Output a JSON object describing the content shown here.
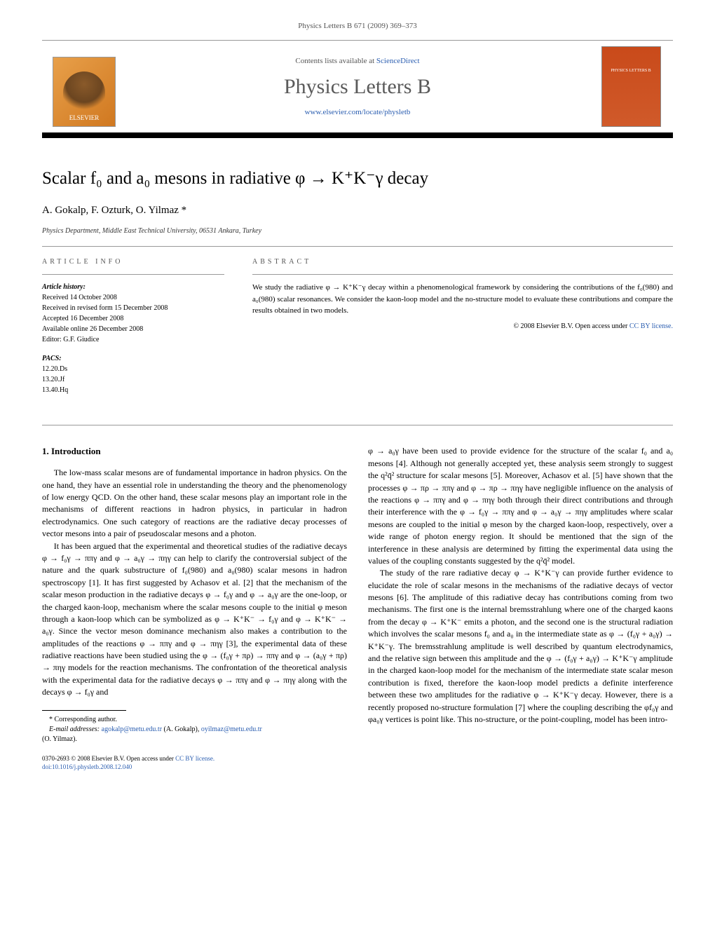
{
  "header": {
    "citation": "Physics Letters B 671 (2009) 369–373"
  },
  "banner": {
    "publisher_name": "ELSEVIER",
    "contents_prefix": "Contents lists available at ",
    "contents_link": "ScienceDirect",
    "journal_name": "Physics Letters B",
    "journal_url": "www.elsevier.com/locate/physletb",
    "cover_label": "PHYSICS LETTERS B"
  },
  "article": {
    "title": "Scalar f₀ and a₀ mesons in radiative φ → K⁺K⁻γ decay",
    "authors": "A. Gokalp, F. Ozturk, O. Yilmaz *",
    "affiliation": "Physics Department, Middle East Technical University, 06531 Ankara, Turkey"
  },
  "meta": {
    "info_heading": "ARTICLE INFO",
    "history_label": "Article history:",
    "received": "Received 14 October 2008",
    "revised": "Received in revised form 15 December 2008",
    "accepted": "Accepted 16 December 2008",
    "online": "Available online 26 December 2008",
    "editor": "Editor: G.F. Giudice",
    "pacs_label": "PACS:",
    "pacs1": "12.20.Ds",
    "pacs2": "13.20.Jf",
    "pacs3": "13.40.Hq"
  },
  "abstract": {
    "heading": "ABSTRACT",
    "text": "We study the radiative φ → K⁺K⁻γ decay within a phenomenological framework by considering the contributions of the f₀(980) and a₀(980) scalar resonances. We consider the kaon-loop model and the no-structure model to evaluate these contributions and compare the results obtained in two models.",
    "copyright": "© 2008 Elsevier B.V. ",
    "open_access": "Open access under ",
    "license_link": "CC BY license."
  },
  "body": {
    "section1_heading": "1. Introduction",
    "p1": "The low-mass scalar mesons are of fundamental importance in hadron physics. On the one hand, they have an essential role in understanding the theory and the phenomenology of low energy QCD. On the other hand, these scalar mesons play an important role in the mechanisms of different reactions in hadron physics, in particular in hadron electrodynamics. One such category of reactions are the radiative decay processes of vector mesons into a pair of pseudoscalar mesons and a photon.",
    "p2": "It has been argued that the experimental and theoretical studies of the radiative decays φ → f₀γ → ππγ and φ → a₀γ → πηγ can help to clarify the controversial subject of the nature and the quark substructure of f₀(980) and a₀(980) scalar mesons in hadron spectroscopy [1]. It has first suggested by Achasov et al. [2] that the mechanism of the scalar meson production in the radiative decays φ → f₀γ and φ → a₀γ are the one-loop, or the charged kaon-loop, mechanism where the scalar mesons couple to the initial φ meson through a kaon-loop which can be symbolized as φ → K⁺K⁻ → f₀γ and φ → K⁺K⁻ → a₀γ. Since the vector meson dominance mechanism also makes a contribution to the amplitudes of the reactions φ → ππγ and φ → πηγ [3], the experimental data of these radiative reactions have been studied using the φ → (f₀γ + πρ) → ππγ and φ → (a₀γ + πρ) → πηγ models for the reaction mechanisms. The confrontation of the theoretical analysis with the experimental data for the radiative decays φ → ππγ and φ → πηγ along with the decays φ → f₀γ and",
    "p3": "φ → a₀γ have been used to provide evidence for the structure of the scalar f₀ and a₀ mesons [4]. Although not generally accepted yet, these analysis seem strongly to suggest the q²q̄² structure for scalar mesons [5]. Moreover, Achasov et al. [5] have shown that the processes φ → πρ → ππγ and φ → πρ → πηγ have negligible influence on the analysis of the reactions φ → ππγ and φ → πηγ both through their direct contributions and through their interference with the φ → f₀γ → ππγ and φ → a₀γ → πηγ amplitudes where scalar mesons are coupled to the initial φ meson by the charged kaon-loop, respectively, over a wide range of photon energy region. It should be mentioned that the sign of the interference in these analysis are determined by fitting the experimental data using the values of the coupling constants suggested by the q²q̄² model.",
    "p4": "The study of the rare radiative decay φ → K⁺K⁻γ can provide further evidence to elucidate the role of scalar mesons in the mechanisms of the radiative decays of vector mesons [6]. The amplitude of this radiative decay has contributions coming from two mechanisms. The first one is the internal bremsstrahlung where one of the charged kaons from the decay φ → K⁺K⁻ emits a photon, and the second one is the structural radiation which involves the scalar mesons f₀ and a₀ in the intermediate state as φ → (f₀γ + a₀γ) → K⁺K⁻γ. The bremsstrahlung amplitude is well described by quantum electrodynamics, and the relative sign between this amplitude and the φ → (f₀γ + a₀γ) → K⁺K⁻γ amplitude in the charged kaon-loop model for the mechanism of the intermediate state scalar meson contribution is fixed, therefore the kaon-loop model predicts a definite interference between these two amplitudes for the radiative φ → K⁺K⁻γ decay. However, there is a recently proposed no-structure formulation [7] where the coupling describing the φf₀γ and φa₀γ vertices is point like. This no-structure, or the point-coupling, model has been intro-"
  },
  "footnote": {
    "corr": "* Corresponding author.",
    "email_label": "E-mail addresses: ",
    "email1": "agokalp@metu.edu.tr",
    "email1_name": " (A. Gokalp), ",
    "email2": "oyilmaz@metu.edu.tr",
    "email2_name": "(O. Yilmaz)."
  },
  "footer": {
    "issn": "0370-2693 © 2008 Elsevier B.V. ",
    "open_access": "Open access under ",
    "license": "CC BY license.",
    "doi": "doi:10.1016/j.physletb.2008.12.040"
  },
  "colors": {
    "link": "#2a5db0",
    "text": "#000000",
    "muted": "#555555",
    "rule": "#999999",
    "elsevier_bg": "#d07820",
    "cover_bg": "#c94a1a"
  }
}
